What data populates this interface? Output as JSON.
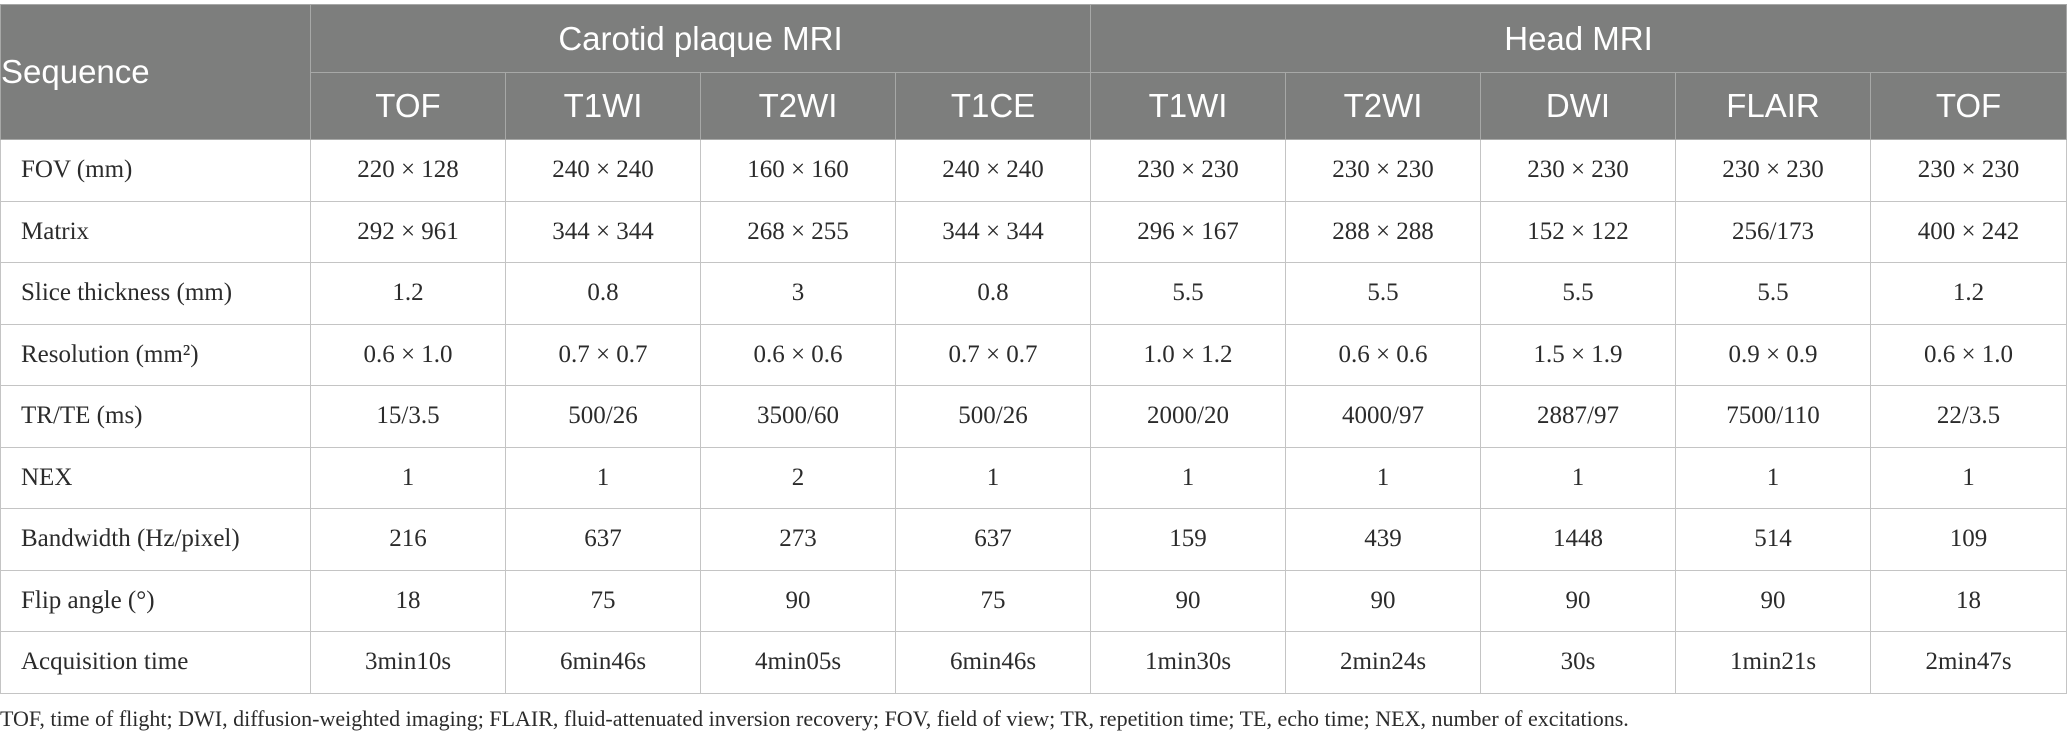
{
  "table": {
    "sequence_header": "Sequence",
    "groups": [
      "Carotid plaque MRI",
      "Head MRI"
    ],
    "columns": [
      "TOF",
      "T1WI",
      "T2WI",
      "T1CE",
      "T1WI",
      "T2WI",
      "DWI",
      "FLAIR",
      "TOF"
    ],
    "rows": [
      {
        "label": "FOV (mm)",
        "values": [
          "220 × 128",
          "240 × 240",
          "160 × 160",
          "240 × 240",
          "230 × 230",
          "230 × 230",
          "230 × 230",
          "230 × 230",
          "230 × 230"
        ]
      },
      {
        "label": "Matrix",
        "values": [
          "292 × 961",
          "344 × 344",
          "268 × 255",
          "344 × 344",
          "296 × 167",
          "288 × 288",
          "152 × 122",
          "256/173",
          "400 × 242"
        ]
      },
      {
        "label": "Slice thickness (mm)",
        "values": [
          "1.2",
          "0.8",
          "3",
          "0.8",
          "5.5",
          "5.5",
          "5.5",
          "5.5",
          "1.2"
        ]
      },
      {
        "label": "Resolution (mm²)",
        "values": [
          "0.6 × 1.0",
          "0.7 × 0.7",
          "0.6 × 0.6",
          "0.7 × 0.7",
          "1.0 × 1.2",
          "0.6 × 0.6",
          "1.5 × 1.9",
          "0.9 × 0.9",
          "0.6 × 1.0"
        ]
      },
      {
        "label": "TR/TE (ms)",
        "values": [
          "15/3.5",
          "500/26",
          "3500/60",
          "500/26",
          "2000/20",
          "4000/97",
          "2887/97",
          "7500/110",
          "22/3.5"
        ]
      },
      {
        "label": "NEX",
        "values": [
          "1",
          "1",
          "2",
          "1",
          "1",
          "1",
          "1",
          "1",
          "1"
        ]
      },
      {
        "label": "Bandwidth (Hz/pixel)",
        "values": [
          "216",
          "637",
          "273",
          "637",
          "159",
          "439",
          "1448",
          "514",
          "109"
        ]
      },
      {
        "label": "Flip angle (°)",
        "values": [
          "18",
          "75",
          "90",
          "75",
          "90",
          "90",
          "90",
          "90",
          "18"
        ]
      },
      {
        "label": "Acquisition time",
        "values": [
          "3min10s",
          "6min46s",
          "4min05s",
          "6min46s",
          "1min30s",
          "2min24s",
          "30s",
          "1min21s",
          "2min47s"
        ]
      }
    ],
    "footnote": "TOF, time of flight; DWI, diffusion-weighted imaging; FLAIR, fluid-attenuated inversion recovery; FOV, field of view; TR, repetition time; TE, echo time; NEX, number of excitations."
  }
}
